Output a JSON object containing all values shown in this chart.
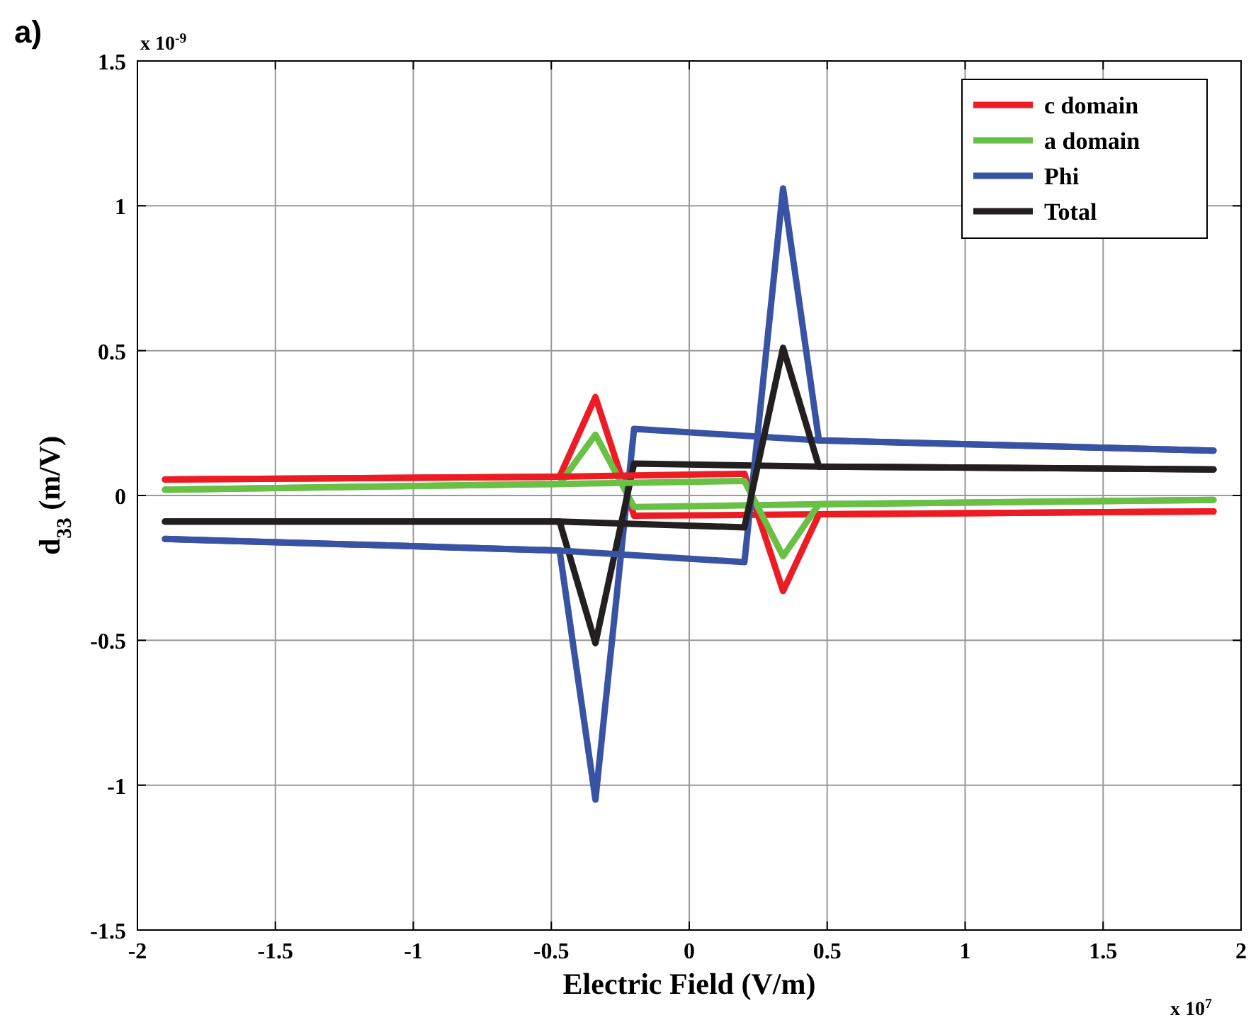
{
  "chart_data": {
    "type": "line",
    "xlabel": "Electric Field (V/m)",
    "ylabel": "d$_{33}$ (m/V)",
    "annotations": [
      "a)",
      "x 10$^{-9}$",
      "x 10$^{7}$"
    ],
    "xlim": [
      -2,
      2
    ],
    "ylim": [
      -1.5,
      1.5
    ],
    "xticks": [
      -2,
      -1.5,
      -1,
      -0.5,
      0,
      0.5,
      1,
      1.5,
      2
    ],
    "yticks": [
      -1.5,
      -1,
      -0.5,
      0,
      0.5,
      1,
      1.5
    ],
    "grid": true,
    "legend": "top right",
    "marker": "none",
    "line_style": "solid",
    "series": [
      {
        "name": "c domain",
        "color": "#ed1c24",
        "x": [
          -1.9,
          -0.47,
          -0.34,
          -0.2,
          0.47,
          1.9
        ],
        "values": [
          0.055,
          0.065,
          0.34,
          -0.07,
          -0.065,
          -0.055
        ]
      },
      {
        "name": "a domain",
        "color": "#6abf45",
        "x": [
          -1.9,
          -0.47,
          -0.34,
          -0.2,
          0.47,
          1.9
        ],
        "values": [
          0.02,
          0.04,
          0.21,
          -0.04,
          -0.03,
          -0.015
        ]
      },
      {
        "name": "Phi",
        "color": "#3953a4",
        "x": [
          -1.9,
          -0.47,
          -0.34,
          -0.2,
          0.47,
          1.9
        ],
        "values": [
          -0.15,
          -0.19,
          -1.05,
          0.23,
          0.19,
          0.155
        ]
      },
      {
        "name": "Total",
        "color": "#231f20",
        "x": [
          -1.9,
          -0.47,
          -0.34,
          -0.2,
          0.47,
          1.9
        ],
        "values": [
          -0.09,
          -0.09,
          -0.51,
          0.11,
          0.1,
          0.09
        ]
      },
      {
        "color": "#ed1c24",
        "x": [
          -1.9,
          -0.47,
          0.2,
          0.34,
          0.47,
          1.9
        ],
        "values": [
          0.055,
          0.065,
          0.075,
          -0.33,
          -0.065,
          -0.055
        ]
      },
      {
        "color": "#6abf45",
        "x": [
          -1.9,
          -0.47,
          0.2,
          0.34,
          0.47,
          1.9
        ],
        "values": [
          0.02,
          0.04,
          0.05,
          -0.21,
          -0.03,
          -0.015
        ]
      },
      {
        "color": "#3953a4",
        "x": [
          -1.9,
          -0.47,
          0.2,
          0.34,
          0.47,
          1.9
        ],
        "values": [
          -0.15,
          -0.19,
          -0.23,
          1.06,
          0.19,
          0.155
        ]
      },
      {
        "color": "#231f20",
        "x": [
          -1.9,
          -0.47,
          0.2,
          0.34,
          0.47,
          1.9
        ],
        "values": [
          -0.09,
          -0.09,
          -0.11,
          0.51,
          0.1,
          0.09
        ]
      }
    ]
  }
}
